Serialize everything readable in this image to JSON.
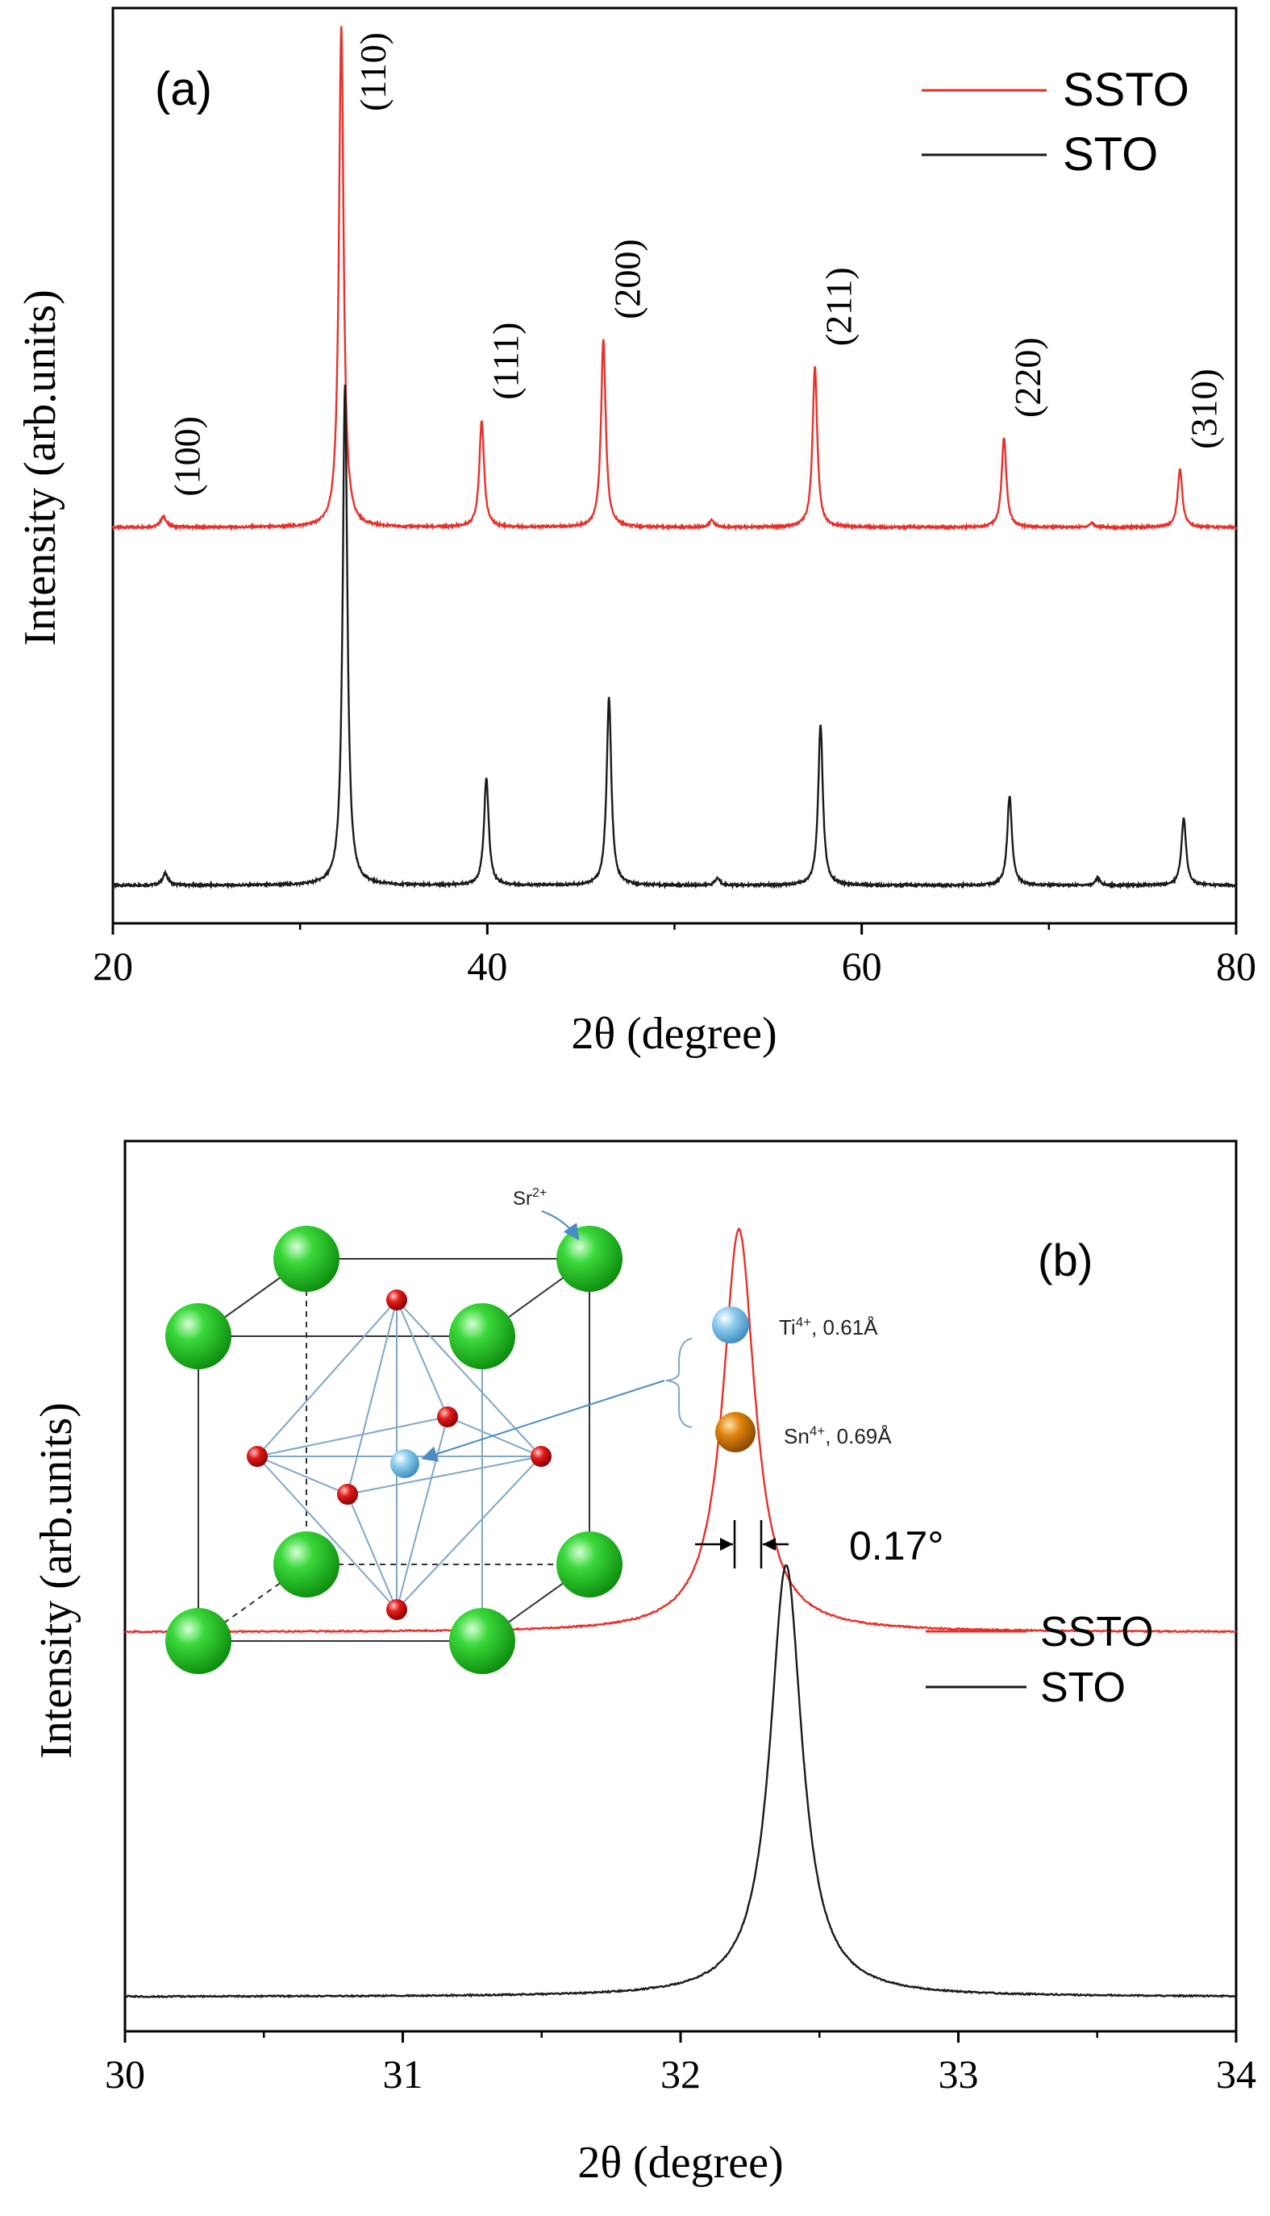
{
  "chart_data": [
    {
      "type": "line",
      "panel_label": "(a)",
      "xlabel": "2θ (degree)",
      "ylabel": "Intensity (arb.units)",
      "xlim": [
        20,
        80
      ],
      "x_ticks": [
        "20",
        "40",
        "60",
        "80"
      ],
      "legend_position": "top-right",
      "series": [
        {
          "name": "SSTO",
          "color": "#e8302a",
          "baseline": 0.4,
          "peaks": [
            [
              22.7,
              0.012,
              0.18
            ],
            [
              32.2,
              0.56,
              0.15
            ],
            [
              39.7,
              0.12,
              0.15
            ],
            [
              46.2,
              0.21,
              0.15
            ],
            [
              52.0,
              0.008,
              0.15
            ],
            [
              57.5,
              0.18,
              0.15
            ],
            [
              67.6,
              0.1,
              0.15
            ],
            [
              72.3,
              0.005,
              0.15
            ],
            [
              77.0,
              0.065,
              0.15
            ]
          ]
        },
        {
          "name": "STO",
          "color": "#1a1a1a",
          "baseline": 0.0,
          "peaks": [
            [
              22.8,
              0.013,
              0.18
            ],
            [
              32.4,
              0.56,
              0.15
            ],
            [
              39.95,
              0.12,
              0.15
            ],
            [
              46.5,
              0.21,
              0.15
            ],
            [
              52.3,
              0.008,
              0.15
            ],
            [
              57.8,
              0.18,
              0.15
            ],
            [
              67.9,
              0.1,
              0.15
            ],
            [
              72.6,
              0.008,
              0.15
            ],
            [
              77.2,
              0.075,
              0.15
            ]
          ]
        }
      ],
      "annotations": [
        {
          "text": "(100)",
          "x": 22.7
        },
        {
          "text": "(110)",
          "x": 32.2
        },
        {
          "text": "(111)",
          "x": 39.7
        },
        {
          "text": "(200)",
          "x": 46.2
        },
        {
          "text": "(211)",
          "x": 57.5
        },
        {
          "text": "(220)",
          "x": 67.6
        },
        {
          "text": "(310)",
          "x": 77.0
        }
      ]
    },
    {
      "type": "line",
      "panel_label": "(b)",
      "xlabel": "2θ (degree)",
      "ylabel": "Intensity (arb.units)",
      "xlim": [
        30,
        34
      ],
      "x_ticks": [
        "30",
        "31",
        "32",
        "33",
        "34"
      ],
      "legend_position": "right",
      "shift_label": "0.17°",
      "series": [
        {
          "name": "SSTO",
          "color": "#e8302a",
          "baseline": 0.4,
          "peak_x": 32.21,
          "peak_height": 0.42,
          "hwhm": 0.07
        },
        {
          "name": "STO",
          "color": "#1a1a1a",
          "baseline": 0.02,
          "peak_x": 32.38,
          "peak_height": 0.45,
          "hwhm": 0.07
        }
      ],
      "inset": {
        "sr_label": "Sr",
        "sr_charge": "2+",
        "ti_label": "Ti",
        "ti_charge": "4+",
        "ti_radius": ", 0.61Å",
        "sn_label": "Sn",
        "sn_charge": "4+",
        "sn_radius": ", 0.69Å",
        "colors": {
          "sr": "#22c422",
          "oxygen": "#e01818",
          "ti": "#8fcdee",
          "sn": "#e0840e",
          "bond": "#7fa6c8"
        }
      }
    }
  ]
}
